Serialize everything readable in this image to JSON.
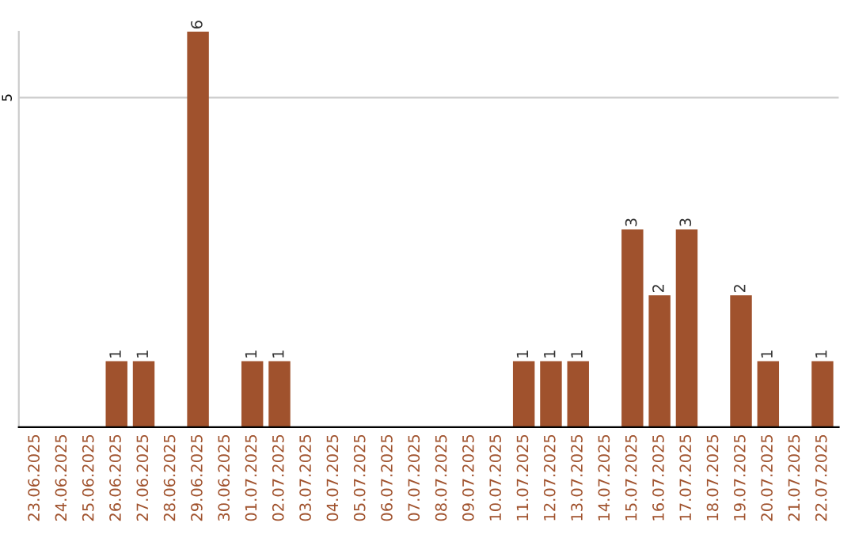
{
  "chart_data": {
    "type": "bar",
    "categories": [
      "23.06.2025",
      "24.06.2025",
      "25.06.2025",
      "26.06.2025",
      "27.06.2025",
      "28.06.2025",
      "29.06.2025",
      "30.06.2025",
      "01.07.2025",
      "02.07.2025",
      "03.07.2025",
      "04.07.2025",
      "05.07.2025",
      "06.07.2025",
      "07.07.2025",
      "08.07.2025",
      "09.07.2025",
      "10.07.2025",
      "11.07.2025",
      "12.07.2025",
      "13.07.2025",
      "14.07.2025",
      "15.07.2025",
      "16.07.2025",
      "17.07.2025",
      "18.07.2025",
      "19.07.2025",
      "20.07.2025",
      "21.07.2025",
      "22.07.2025"
    ],
    "values": [
      0,
      0,
      0,
      1,
      1,
      0,
      6,
      0,
      1,
      1,
      0,
      0,
      0,
      0,
      0,
      0,
      0,
      0,
      1,
      1,
      1,
      0,
      3,
      2,
      3,
      0,
      2,
      1,
      0,
      1
    ],
    "value_labels": [
      null,
      null,
      null,
      "1",
      "1",
      null,
      "6",
      null,
      "1",
      "1",
      null,
      null,
      null,
      null,
      null,
      null,
      null,
      null,
      "1",
      "1",
      "1",
      null,
      "3",
      "2",
      "3",
      null,
      "2",
      "1",
      null,
      "1"
    ],
    "color": "#a0522d",
    "ylim": [
      0,
      6
    ],
    "yticks": [
      5
    ],
    "grid": "y"
  }
}
